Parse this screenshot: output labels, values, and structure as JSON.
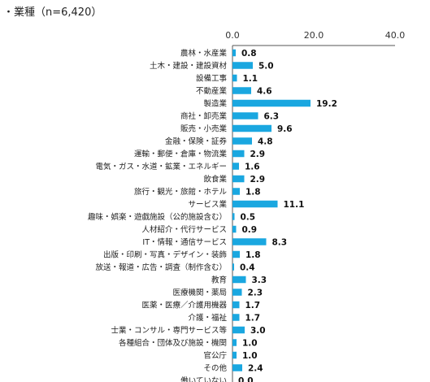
{
  "chart_data": {
    "type": "bar",
    "orientation": "horizontal",
    "title": "・業種（n=6,420）",
    "xlim": [
      0,
      40
    ],
    "xticks": [
      "0.0",
      "20.0",
      "40.0"
    ],
    "grid": false,
    "color": "#1aa7e0",
    "categories": [
      "農林・水産業",
      "土木・建設・建設資材",
      "設備工事",
      "不動産業",
      "製造業",
      "商社・卸売業",
      "販売・小売業",
      "金融・保険・証券",
      "運輸・郵便・倉庫・物流業",
      "電気・ガス・水道・鉱業・エネルギー",
      "飲食業",
      "旅行・観光・旅館・ホテル",
      "サービス業",
      "趣味・娯楽・遊戯施設（公的施設含む）",
      "人材紹介・代行サービス",
      "IT・情報・通信サービス",
      "出版・印刷・写真・デザイン・装飾",
      "放送・報道・広告・調査（制作含む）",
      "教育",
      "医療機関・薬局",
      "医薬・医療／介護用機器",
      "介護・福祉",
      "士業・コンサル・専門サービス等",
      "各種組合・団体及び施設・機関",
      "官公庁",
      "その他",
      "働いていない"
    ],
    "values": [
      0.8,
      5.0,
      1.1,
      4.6,
      19.2,
      6.3,
      9.6,
      4.8,
      2.9,
      1.6,
      2.9,
      1.8,
      11.1,
      0.5,
      0.9,
      8.3,
      1.8,
      0.4,
      3.3,
      2.3,
      1.7,
      1.7,
      3.0,
      1.0,
      1.0,
      2.4,
      0.0
    ]
  }
}
